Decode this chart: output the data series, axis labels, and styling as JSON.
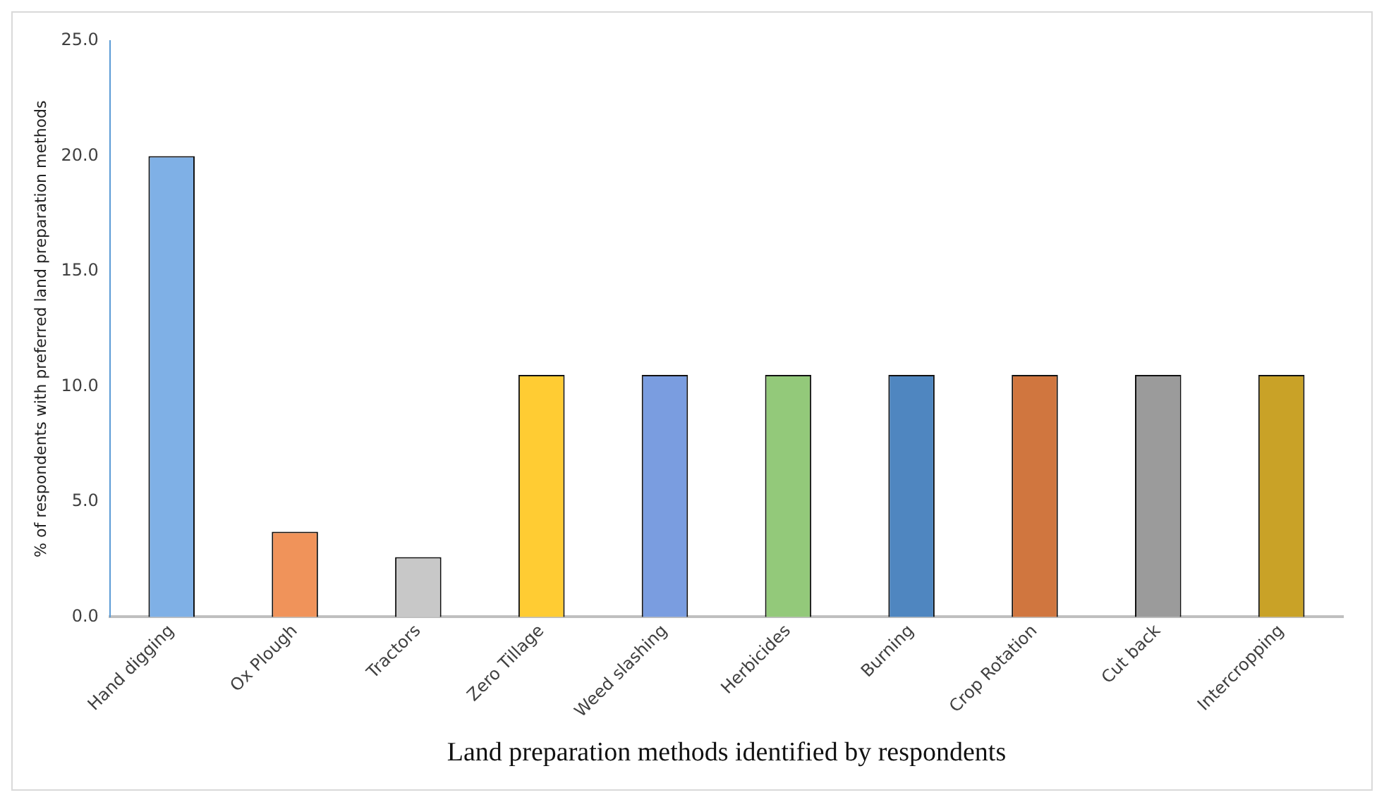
{
  "chart_data": {
    "type": "bar",
    "xlabel": "Land preparation methods identified by respondents",
    "ylabel": "% of respondents with preferred land preparation methods",
    "categories": [
      "Hand digging",
      "Ox Plough",
      "Tractors",
      "Zero Tillage",
      "Weed slashing",
      "Herbicides",
      "Burning",
      "Crop Rotation",
      "Cut back",
      "Intercropping"
    ],
    "values": [
      20.0,
      3.7,
      2.6,
      10.5,
      10.5,
      10.5,
      10.5,
      10.5,
      10.5,
      10.5
    ],
    "colors": [
      "#7fb0e6",
      "#f0935a",
      "#c8c8c8",
      "#ffcc33",
      "#7a9de0",
      "#93c97a",
      "#4f86c0",
      "#d0763f",
      "#9b9b9b",
      "#c9a227"
    ],
    "ylim": [
      0,
      25
    ],
    "yticks": [
      {
        "value": 0,
        "label": "0.0"
      },
      {
        "value": 5,
        "label": "5.0"
      },
      {
        "value": 10,
        "label": "10.0"
      },
      {
        "value": 15,
        "label": "15.0"
      },
      {
        "value": 20,
        "label": "20.0"
      },
      {
        "value": 25,
        "label": "25.0"
      }
    ],
    "grid": false,
    "legend": false
  }
}
